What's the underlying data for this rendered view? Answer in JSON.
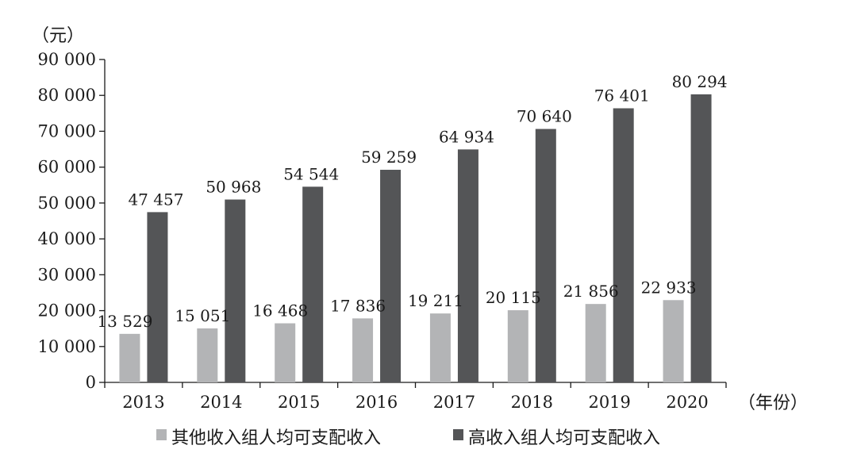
{
  "chart_data": {
    "type": "bar",
    "y_unit": "（元）",
    "x_unit": "（年份）",
    "categories": [
      "2013",
      "2014",
      "2015",
      "2016",
      "2017",
      "2018",
      "2019",
      "2020"
    ],
    "series": [
      {
        "name": "其他收入组人均可支配收入",
        "values": [
          13529,
          15051,
          16468,
          17836,
          19211,
          20115,
          21856,
          22933
        ],
        "labels": [
          "13 529",
          "15 051",
          "16 468",
          "17 836",
          "19 211",
          "20 115",
          "21 856",
          "22 933"
        ],
        "color": "#b3b4b6"
      },
      {
        "name": "高收入组人均可支配收入",
        "values": [
          47457,
          50968,
          54544,
          59259,
          64934,
          70640,
          76401,
          80294
        ],
        "labels": [
          "47 457",
          "50 968",
          "54 544",
          "59 259",
          "64 934",
          "70 640",
          "76 401",
          "80 294"
        ],
        "color": "#545557"
      }
    ],
    "yticks": [
      0,
      10000,
      20000,
      30000,
      40000,
      50000,
      60000,
      70000,
      80000,
      90000
    ],
    "ytick_labels": [
      "0",
      "10 000",
      "20 000",
      "30 000",
      "40 000",
      "50 000",
      "60 000",
      "70 000",
      "80 000",
      "90 000"
    ],
    "ylim": [
      0,
      90000
    ],
    "grid": false,
    "legend_position": "bottom"
  }
}
